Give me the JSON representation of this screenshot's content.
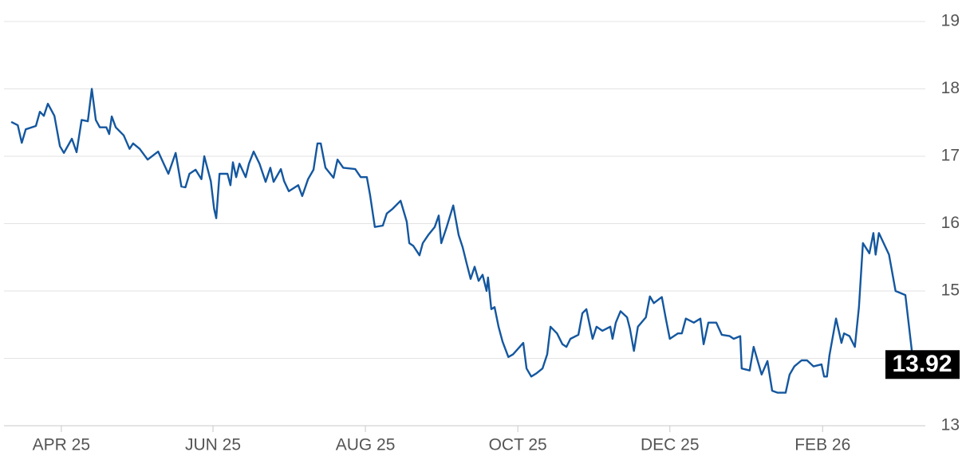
{
  "chart_data": {
    "type": "line",
    "x": [
      0,
      1.8,
      2.9,
      4.0,
      6.8,
      7.9,
      9.0,
      10.1,
      11.9,
      13.4,
      14.5,
      16.7,
      18.0,
      19.4,
      21.1,
      22.2,
      23.3,
      24.4,
      26.2,
      27.0,
      27.7,
      28.8,
      31.0,
      32.6,
      33.6,
      35.4,
      37.6,
      40.5,
      42.0,
      43.3,
      45.3,
      46.9,
      48.0,
      49.1,
      50.8,
      52.4,
      53.2,
      55.0,
      55.9,
      56.5,
      57.4,
      59.6,
      60.4,
      61.1,
      62.0,
      62.9,
      64.6,
      65.5,
      66.8,
      68.4,
      70.1,
      71.4,
      72.3,
      74.3,
      75.2,
      76.5,
      79.1,
      80.2,
      81.8,
      83.3,
      84.4,
      85.3,
      86.6,
      88.8,
      89.9,
      91.5,
      94.8,
      96.3,
      98.0,
      98.9,
      100.2,
      102.4,
      103.5,
      105.1,
      107.3,
      109.0,
      109.7,
      110.8,
      112.5,
      113.4,
      114.9,
      116.7,
      117.8,
      118.5,
      120.0,
      121.8,
      123.3,
      124.4,
      125.5,
      126.6,
      127.7,
      128.8,
      129.9,
      131.0,
      131.4,
      132.3,
      133.2,
      134.3,
      135.4,
      137.0,
      138.3,
      141.1,
      142.0,
      143.3,
      144.8,
      146.4,
      147.7,
      148.6,
      150.4,
      151.9,
      153.0,
      154.1,
      156.3,
      157.4,
      158.5,
      160.2,
      161.3,
      162.9,
      165.1,
      165.7,
      166.6,
      167.9,
      169.7,
      170.5,
      171.6,
      172.7,
      174.9,
      176.0,
      177.1,
      179.3,
      180.4,
      181.5,
      183.7,
      184.8,
      185.9,
      188.1,
      189.9,
      190.8,
      192.1,
      194.3,
      195.8,
      198.0,
      199.1,
      200.9,
      201.3,
      203.5,
      204.6,
      206.8,
      208.4,
      209.7,
      211.2,
      213.4,
      214.5,
      215.8,
      217.8,
      219.3,
      221.1,
      223.3,
      224.0,
      224.8,
      225.5,
      227.3,
      228.8,
      229.5,
      231.0,
      232.5,
      233.6,
      234.7,
      236.5,
      237.6,
      238.2,
      239.1,
      241.9,
      243.7,
      246.4,
      248.6
    ],
    "series": [
      {
        "color": "#14579f",
        "values": [
          17.51,
          17.46,
          17.2,
          17.4,
          17.45,
          17.66,
          17.6,
          17.78,
          17.6,
          17.15,
          17.05,
          17.26,
          17.06,
          17.54,
          17.52,
          18.0,
          17.54,
          17.43,
          17.43,
          17.33,
          17.59,
          17.43,
          17.31,
          17.11,
          17.19,
          17.11,
          16.95,
          17.07,
          16.89,
          16.74,
          17.05,
          16.55,
          16.54,
          16.74,
          16.8,
          16.66,
          17.0,
          16.63,
          16.22,
          16.08,
          16.74,
          16.74,
          16.57,
          16.91,
          16.69,
          16.89,
          16.69,
          16.89,
          17.07,
          16.89,
          16.62,
          16.83,
          16.62,
          16.81,
          16.63,
          16.48,
          16.57,
          16.41,
          16.66,
          16.8,
          17.19,
          17.19,
          16.83,
          16.68,
          16.95,
          16.83,
          16.81,
          16.69,
          16.69,
          16.42,
          15.95,
          15.97,
          16.15,
          16.22,
          16.34,
          16.03,
          15.71,
          15.67,
          15.53,
          15.71,
          15.83,
          15.95,
          16.12,
          15.71,
          15.95,
          16.27,
          15.83,
          15.65,
          15.41,
          15.18,
          15.36,
          15.15,
          15.24,
          15.0,
          15.2,
          14.73,
          14.76,
          14.47,
          14.25,
          14.02,
          14.06,
          14.23,
          13.85,
          13.73,
          13.78,
          13.85,
          14.06,
          14.47,
          14.37,
          14.21,
          14.17,
          14.29,
          14.35,
          14.67,
          14.73,
          14.29,
          14.47,
          14.41,
          14.47,
          14.29,
          14.53,
          14.7,
          14.61,
          14.44,
          14.11,
          14.47,
          14.61,
          14.92,
          14.82,
          14.91,
          14.59,
          14.29,
          14.37,
          14.37,
          14.59,
          14.53,
          14.59,
          14.21,
          14.53,
          14.53,
          14.35,
          14.33,
          14.29,
          14.33,
          13.85,
          13.82,
          14.17,
          13.76,
          13.96,
          13.52,
          13.49,
          13.49,
          13.76,
          13.88,
          13.97,
          13.97,
          13.88,
          13.91,
          13.73,
          13.73,
          14.05,
          14.59,
          14.23,
          14.37,
          14.33,
          14.17,
          14.76,
          15.71,
          15.56,
          15.86,
          15.54,
          15.86,
          15.54,
          15.0,
          14.94,
          13.92
        ]
      }
    ],
    "xlim": [
      -2.0,
      251.9
    ],
    "xticks": [
      {
        "value": 13.8,
        "label": "APR 25"
      },
      {
        "value": 55.6,
        "label": "JUN 25"
      },
      {
        "value": 97.6,
        "label": "AUG 25"
      },
      {
        "value": 139.6,
        "label": "OCT 25"
      },
      {
        "value": 181.5,
        "label": "DEC 25"
      },
      {
        "value": 223.6,
        "label": "FEB 26"
      }
    ],
    "ylim": [
      13,
      19
    ],
    "yticks": [
      13,
      14,
      15,
      16,
      17,
      18,
      19
    ],
    "grid": true
  }
}
